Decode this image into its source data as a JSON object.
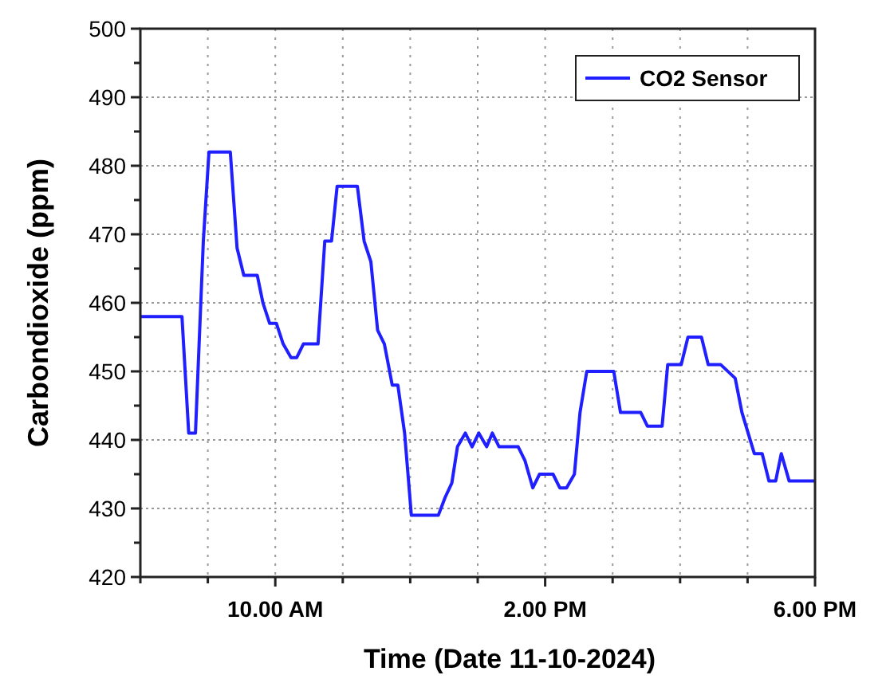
{
  "chart_data": {
    "type": "line",
    "xlabel": "Time (Date 11-10-2024)",
    "ylabel": "Carbondioxide (ppm)",
    "x": [
      "2024-10-11T08:00",
      "2024-10-11T08:37",
      "2024-10-11T08:43",
      "2024-10-11T08:49",
      "2024-10-11T08:56",
      "2024-10-11T09:01",
      "2024-10-11T09:20",
      "2024-10-11T09:26",
      "2024-10-11T09:32",
      "2024-10-11T09:44",
      "2024-10-11T09:49",
      "2024-10-11T09:55",
      "2024-10-11T10:01",
      "2024-10-11T10:07",
      "2024-10-11T10:14",
      "2024-10-11T10:19",
      "2024-10-11T10:25",
      "2024-10-11T10:38",
      "2024-10-11T10:44",
      "2024-10-11T10:50",
      "2024-10-11T10:55",
      "2024-10-11T11:13",
      "2024-10-11T11:19",
      "2024-10-11T11:25",
      "2024-10-11T11:31",
      "2024-10-11T11:37",
      "2024-10-11T11:44",
      "2024-10-11T11:49",
      "2024-10-11T11:55",
      "2024-10-11T12:01",
      "2024-10-11T12:25",
      "2024-10-11T12:31",
      "2024-10-11T12:37",
      "2024-10-11T12:42",
      "2024-10-11T12:49",
      "2024-10-11T12:55",
      "2024-10-11T13:01",
      "2024-10-11T13:08",
      "2024-10-11T13:13",
      "2024-10-11T13:19",
      "2024-10-11T13:36",
      "2024-10-11T13:42",
      "2024-10-11T13:49",
      "2024-10-11T13:55",
      "2024-10-11T14:07",
      "2024-10-11T14:13",
      "2024-10-11T14:19",
      "2024-10-11T14:26",
      "2024-10-11T14:31",
      "2024-10-11T14:37",
      "2024-10-11T15:01",
      "2024-10-11T15:07",
      "2024-10-11T15:25",
      "2024-10-11T15:31",
      "2024-10-11T15:44",
      "2024-10-11T15:49",
      "2024-10-11T16:01",
      "2024-10-11T16:07",
      "2024-10-11T16:19",
      "2024-10-11T16:25",
      "2024-10-11T16:36",
      "2024-10-11T16:49",
      "2024-10-11T16:55",
      "2024-10-11T17:06",
      "2024-10-11T17:13",
      "2024-10-11T17:19",
      "2024-10-11T17:25",
      "2024-10-11T17:30",
      "2024-10-11T17:37",
      "2024-10-11T18:00"
    ],
    "series": [
      {
        "name": "CO2 Sensor",
        "color": "#1f1fff",
        "values": [
          458,
          458,
          441,
          441,
          469,
          482,
          482,
          468,
          464,
          464,
          460,
          457,
          457,
          454,
          452,
          452,
          454,
          454,
          469,
          469,
          477,
          477,
          469,
          466,
          456,
          454,
          448,
          448,
          441,
          429,
          429,
          431.6,
          433.7,
          439,
          441,
          439,
          441,
          439,
          441,
          439,
          439,
          437,
          433,
          435,
          435,
          433,
          433,
          435,
          444,
          450,
          450,
          444,
          444,
          442,
          442,
          451,
          451,
          455,
          455,
          451,
          451,
          449,
          444,
          438,
          438,
          434,
          434,
          438,
          434,
          434
        ]
      }
    ],
    "xlim": [
      "2024-10-11T08:00",
      "2024-10-11T18:00"
    ],
    "xticks": [
      {
        "value": "2024-10-11T08:00",
        "label": null
      },
      {
        "value": "2024-10-11T09:00",
        "label": null
      },
      {
        "value": "2024-10-11T10:00",
        "label": "10.00 AM"
      },
      {
        "value": "2024-10-11T11:00",
        "label": null
      },
      {
        "value": "2024-10-11T12:00",
        "label": null
      },
      {
        "value": "2024-10-11T13:00",
        "label": null
      },
      {
        "value": "2024-10-11T14:00",
        "label": "2.00 PM"
      },
      {
        "value": "2024-10-11T15:00",
        "label": null
      },
      {
        "value": "2024-10-11T16:00",
        "label": null
      },
      {
        "value": "2024-10-11T17:00",
        "label": null
      },
      {
        "value": "2024-10-11T18:00",
        "label": "6.00 PM"
      }
    ],
    "ylim": [
      420,
      500
    ],
    "yticks": [
      420,
      {
        "value": 425,
        "label": null
      },
      430,
      {
        "value": 435,
        "label": null
      },
      440,
      {
        "value": 445,
        "label": null
      },
      450,
      {
        "value": 455,
        "label": null
      },
      460,
      {
        "value": 465,
        "label": null
      },
      470,
      {
        "value": 475,
        "label": null
      },
      480,
      {
        "value": 485,
        "label": null
      },
      490,
      {
        "value": 495,
        "label": null
      },
      500
    ],
    "grid": true,
    "legend": "top right",
    "marker": "none",
    "line_style": "solid"
  }
}
